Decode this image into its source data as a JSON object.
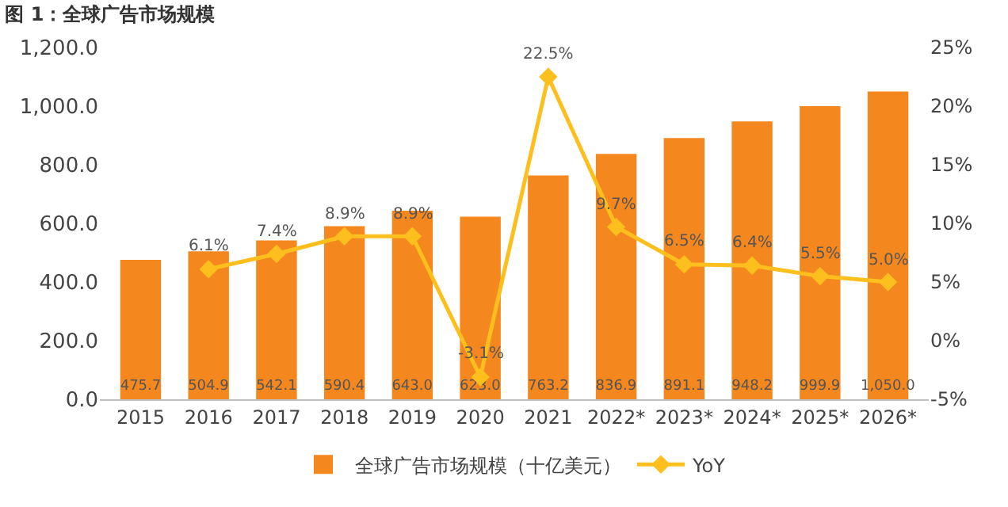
{
  "chart_data": {
    "type": "bar",
    "title": "图 1：全球广告市场规模",
    "categories": [
      "2015",
      "2016",
      "2017",
      "2018",
      "2019",
      "2020",
      "2021",
      "2022*",
      "2023*",
      "2024*",
      "2025*",
      "2026*"
    ],
    "series": [
      {
        "name": "全球广告市场规模（十亿美元）",
        "color": "#f5871f",
        "values": [
          475.7,
          504.9,
          542.1,
          590.4,
          643.0,
          623.0,
          763.2,
          836.9,
          891.1,
          948.2,
          999.9,
          1050.0
        ],
        "value_labels": [
          "475.7",
          "504.9",
          "542.1",
          "590.4",
          "643.0",
          "623.0",
          "763.2",
          "836.9",
          "891.1",
          "948.2",
          "999.9",
          "1,050.0"
        ]
      },
      {
        "name": "YoY",
        "type": "line",
        "axis": "y2",
        "color": "#fcbf1e",
        "marker": "diamond",
        "values": [
          null,
          6.1,
          7.4,
          8.9,
          8.9,
          -3.1,
          22.5,
          9.7,
          6.5,
          6.4,
          5.5,
          5.0
        ],
        "value_labels": [
          null,
          "6.1%",
          "7.4%",
          "8.9%",
          "8.9%",
          "-3.1%",
          "22.5%",
          "9.7%",
          "6.5%",
          "6.4%",
          "5.5%",
          "5.0%"
        ]
      }
    ],
    "ylim": [
      0,
      1200
    ],
    "yticks": [
      {
        "value": 0,
        "label": "0.0"
      },
      {
        "value": 200,
        "label": "200.0"
      },
      {
        "value": 400,
        "label": "400.0"
      },
      {
        "value": 600,
        "label": "600.0"
      },
      {
        "value": 800,
        "label": "800.0"
      },
      {
        "value": 1000,
        "label": "1,000.0"
      },
      {
        "value": 1200,
        "label": "1,200.0"
      }
    ],
    "y2lim": [
      -5,
      25
    ],
    "y2ticks": [
      {
        "value": -5,
        "label": "-5%"
      },
      {
        "value": 0,
        "label": "0%"
      },
      {
        "value": 5,
        "label": "5%"
      },
      {
        "value": 10,
        "label": "10%"
      },
      {
        "value": 15,
        "label": "15%"
      },
      {
        "value": 20,
        "label": "20%"
      },
      {
        "value": 25,
        "label": "25%"
      }
    ],
    "legend": "bottom"
  }
}
